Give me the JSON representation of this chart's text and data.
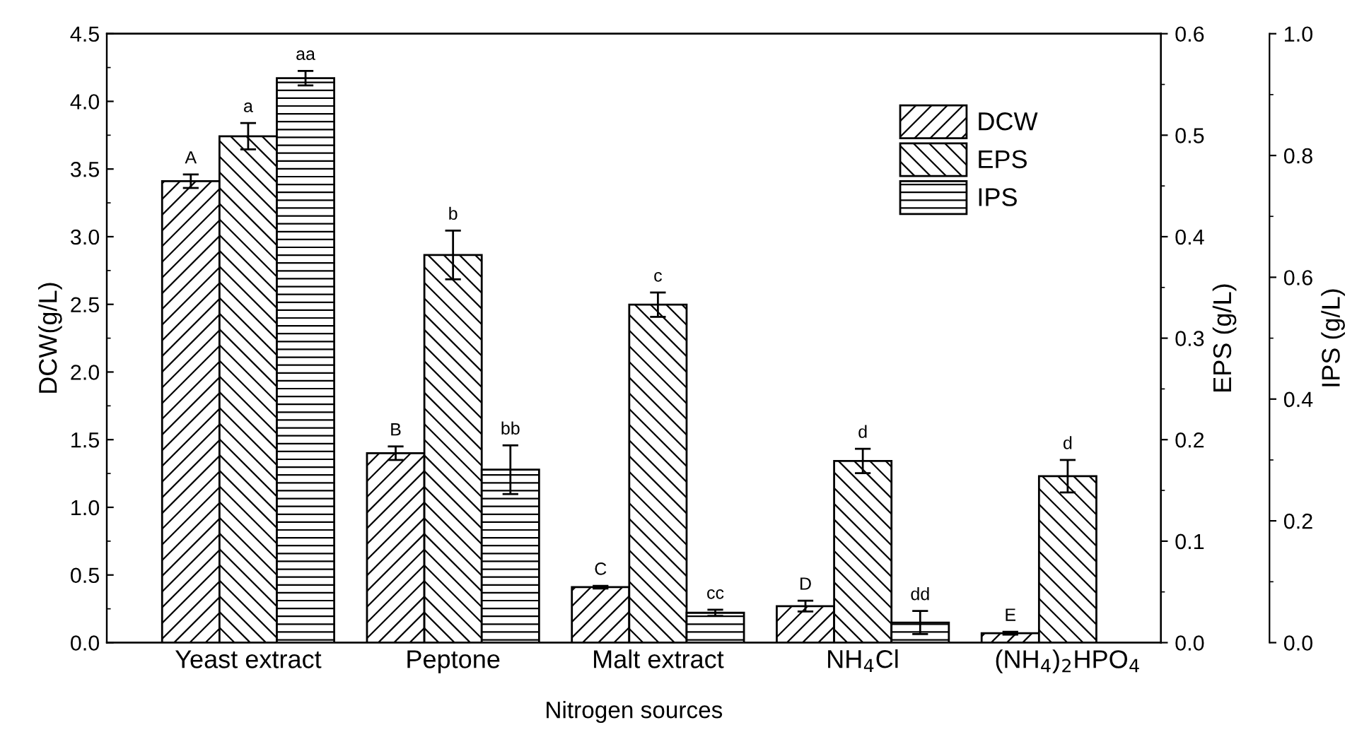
{
  "chart_data": {
    "type": "bar",
    "xlabel": "Nitrogen sources",
    "ylabel": "DCW(g/L)",
    "y2label": "EPS (g/L)",
    "y3label": "IPS (g/L)",
    "categories": [
      "Yeast extract",
      "Peptone",
      "Malt extract",
      "NH$_{4}$Cl",
      "(NH$_{4}$)$_{2}$HPO$_{4}$"
    ],
    "series": [
      {
        "name": "DCW",
        "color": "#000000",
        "values": [
          3.41,
          1.4,
          0.41,
          0.27,
          0.07
        ],
        "errors": [
          0.05,
          0.05,
          0.01,
          0.04,
          0.01
        ],
        "value_labels": [
          "A",
          "B",
          "C",
          "D",
          "E"
        ]
      },
      {
        "name": "EPS",
        "color": "#000000",
        "axis": "y2",
        "values": [
          0.499,
          0.382,
          0.333,
          0.179,
          0.164
        ],
        "errors": [
          0.013,
          0.024,
          0.012,
          0.012,
          0.016
        ],
        "value_labels": [
          "a",
          "b",
          "c",
          "d",
          "d"
        ]
      },
      {
        "name": "IPS",
        "color": "#000000",
        "axis": "y3",
        "values": [
          0.927,
          0.284,
          0.049,
          0.033,
          null
        ],
        "errors": [
          0.012,
          0.04,
          0.005,
          0.019,
          null
        ],
        "value_labels": [
          "aa",
          "bb",
          "cc",
          "dd",
          null
        ]
      }
    ],
    "ylim": [
      0,
      4.5
    ],
    "yticks": [
      {
        "value": 0,
        "label": "0.0"
      },
      0.5,
      {
        "value": 1,
        "label": "1.0"
      },
      1.5,
      {
        "value": 2,
        "label": "2.0"
      },
      2.5,
      {
        "value": 3,
        "label": "3.0"
      },
      3.5,
      {
        "value": 4,
        "label": "4.0"
      },
      4.5
    ],
    "y2lim": [
      0,
      0.6
    ],
    "y2ticks": [
      {
        "value": 0,
        "label": "0.0"
      },
      0.1,
      0.2,
      0.3,
      0.4,
      0.5,
      0.6
    ],
    "y3lim": [
      0,
      1
    ],
    "y3ticks": [
      {
        "value": 0,
        "label": "0.0"
      },
      0.2,
      0.4,
      0.6,
      0.8,
      {
        "value": 1,
        "label": "1.0"
      }
    ],
    "legend": "top right",
    "grid": false
  }
}
